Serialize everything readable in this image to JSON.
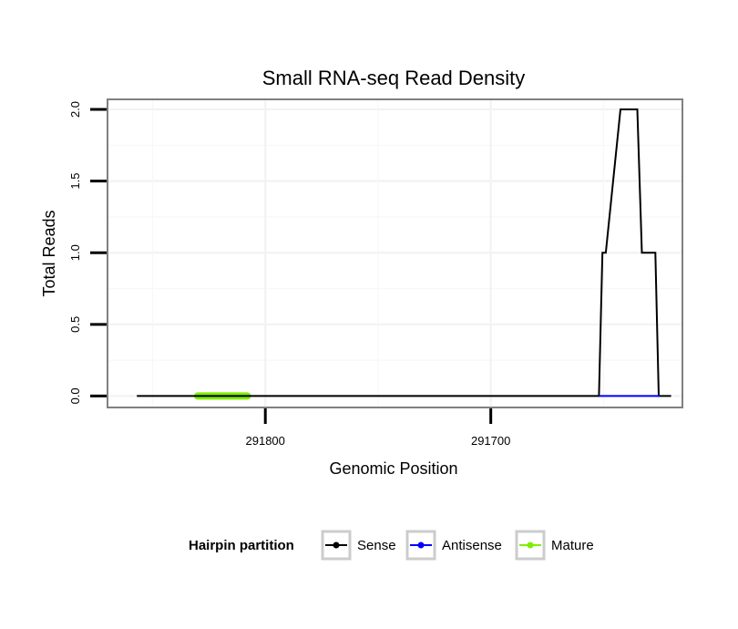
{
  "chart_data": {
    "type": "line",
    "title": "Small RNA-seq Read Density",
    "xlabel": "Genomic Position",
    "ylabel": "Total Reads",
    "x_reversed": true,
    "xlim": [
      291870,
      291615
    ],
    "ylim": [
      -0.08,
      2.07
    ],
    "x_ticks": [
      291800,
      291700
    ],
    "x_tick_labels": [
      "291800",
      "291700"
    ],
    "y_ticks": [
      0.0,
      0.5,
      1.0,
      1.5,
      2.0
    ],
    "y_tick_labels": [
      "0.0",
      "0.5",
      "1.0",
      "1.5",
      "2.0"
    ],
    "grid": true,
    "series": [
      {
        "name": "Sense",
        "color": "#000000",
        "x": [
          291857,
          291652,
          291650.5,
          291649,
          291642.5,
          291635,
          291633,
          291627,
          291625.5,
          291620
        ],
        "y": [
          0,
          0,
          1,
          1,
          2,
          2,
          1,
          1,
          0,
          0
        ]
      },
      {
        "name": "Antisense",
        "color": "#0000ff",
        "x": [
          291652,
          291625
        ],
        "y": [
          0,
          0
        ]
      }
    ],
    "mature_region": {
      "name": "Mature",
      "color": "#7fee00",
      "x": [
        291830,
        291808
      ],
      "y": 0
    },
    "legend": {
      "title": "Hairpin partition",
      "position": "bottom",
      "entries": [
        {
          "label": "Sense",
          "color": "#000000"
        },
        {
          "label": "Antisense",
          "color": "#0000ff"
        },
        {
          "label": "Mature",
          "color": "#7fee00"
        }
      ]
    }
  }
}
